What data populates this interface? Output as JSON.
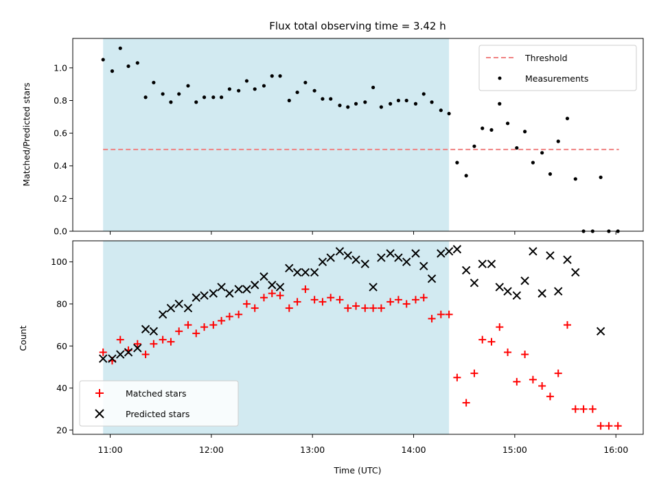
{
  "chart_data": [
    {
      "type": "scatter",
      "title": "Flux total observing time = 3.42 h",
      "ylabel": "Matched/Predicted stars",
      "ylim": [
        0,
        1.18
      ],
      "xlim": [
        10.63,
        16.27
      ],
      "yticks": [
        0.0,
        0.2,
        0.4,
        0.6,
        0.8,
        1.0
      ],
      "ytick_labels": [
        "0.0",
        "0.2",
        "0.4",
        "0.6",
        "0.8",
        "1.0"
      ],
      "observing_window": [
        10.93,
        14.35
      ],
      "threshold": {
        "name": "Threshold",
        "value": 0.5,
        "x_range": [
          10.93,
          16.03
        ],
        "color": "#f08080"
      },
      "legend": {
        "position": "top-right",
        "entries": [
          "Threshold",
          "Measurements"
        ]
      },
      "series": [
        {
          "name": "Measurements",
          "color": "#000000",
          "points": [
            [
              10.93,
              1.05
            ],
            [
              11.02,
              0.98
            ],
            [
              11.1,
              1.12
            ],
            [
              11.18,
              1.01
            ],
            [
              11.27,
              1.03
            ],
            [
              11.35,
              0.82
            ],
            [
              11.43,
              0.91
            ],
            [
              11.52,
              0.84
            ],
            [
              11.6,
              0.79
            ],
            [
              11.68,
              0.84
            ],
            [
              11.77,
              0.89
            ],
            [
              11.85,
              0.79
            ],
            [
              11.93,
              0.82
            ],
            [
              12.02,
              0.82
            ],
            [
              12.1,
              0.82
            ],
            [
              12.18,
              0.87
            ],
            [
              12.27,
              0.86
            ],
            [
              12.35,
              0.92
            ],
            [
              12.43,
              0.87
            ],
            [
              12.52,
              0.89
            ],
            [
              12.6,
              0.95
            ],
            [
              12.68,
              0.95
            ],
            [
              12.77,
              0.8
            ],
            [
              12.85,
              0.85
            ],
            [
              12.93,
              0.91
            ],
            [
              13.02,
              0.86
            ],
            [
              13.1,
              0.81
            ],
            [
              13.18,
              0.81
            ],
            [
              13.27,
              0.77
            ],
            [
              13.35,
              0.76
            ],
            [
              13.43,
              0.78
            ],
            [
              13.52,
              0.79
            ],
            [
              13.6,
              0.88
            ],
            [
              13.68,
              0.76
            ],
            [
              13.77,
              0.78
            ],
            [
              13.85,
              0.8
            ],
            [
              13.93,
              0.8
            ],
            [
              14.02,
              0.78
            ],
            [
              14.1,
              0.84
            ],
            [
              14.18,
              0.79
            ],
            [
              14.27,
              0.74
            ],
            [
              14.35,
              0.72
            ],
            [
              14.43,
              0.42
            ],
            [
              14.52,
              0.34
            ],
            [
              14.6,
              0.52
            ],
            [
              14.68,
              0.63
            ],
            [
              14.77,
              0.62
            ],
            [
              14.85,
              0.78
            ],
            [
              14.93,
              0.66
            ],
            [
              15.02,
              0.51
            ],
            [
              15.1,
              0.61
            ],
            [
              15.18,
              0.42
            ],
            [
              15.27,
              0.48
            ],
            [
              15.35,
              0.35
            ],
            [
              15.43,
              0.55
            ],
            [
              15.52,
              0.69
            ],
            [
              15.6,
              0.32
            ],
            [
              15.68,
              0.0
            ],
            [
              15.77,
              0.0
            ],
            [
              15.85,
              0.33
            ],
            [
              15.93,
              0.0
            ],
            [
              16.02,
              0.0
            ]
          ]
        }
      ]
    },
    {
      "type": "scatter",
      "xlabel": "Time (UTC)",
      "ylabel": "Count",
      "ylim": [
        18,
        110
      ],
      "xlim": [
        10.63,
        16.27
      ],
      "yticks": [
        20,
        40,
        60,
        80,
        100
      ],
      "ytick_labels": [
        "20",
        "40",
        "60",
        "80",
        "100"
      ],
      "xticks": [
        11,
        12,
        13,
        14,
        15,
        16
      ],
      "xtick_labels": [
        "11:00",
        "12:00",
        "13:00",
        "14:00",
        "15:00",
        "16:00"
      ],
      "observing_window": [
        10.93,
        14.35
      ],
      "legend": {
        "position": "bottom-left",
        "entries": [
          "Matched stars",
          "Predicted stars"
        ]
      },
      "series": [
        {
          "name": "Matched stars",
          "marker": "plus",
          "color": "#ff0000",
          "points": [
            [
              10.93,
              57
            ],
            [
              11.02,
              53
            ],
            [
              11.1,
              63
            ],
            [
              11.18,
              58
            ],
            [
              11.27,
              61
            ],
            [
              11.35,
              56
            ],
            [
              11.43,
              61
            ],
            [
              11.52,
              63
            ],
            [
              11.6,
              62
            ],
            [
              11.68,
              67
            ],
            [
              11.77,
              70
            ],
            [
              11.85,
              66
            ],
            [
              11.93,
              69
            ],
            [
              12.02,
              70
            ],
            [
              12.1,
              72
            ],
            [
              12.18,
              74
            ],
            [
              12.27,
              75
            ],
            [
              12.35,
              80
            ],
            [
              12.43,
              78
            ],
            [
              12.52,
              83
            ],
            [
              12.6,
              85
            ],
            [
              12.68,
              84
            ],
            [
              12.77,
              78
            ],
            [
              12.85,
              81
            ],
            [
              12.93,
              87
            ],
            [
              13.02,
              82
            ],
            [
              13.1,
              81
            ],
            [
              13.18,
              83
            ],
            [
              13.27,
              82
            ],
            [
              13.35,
              78
            ],
            [
              13.43,
              79
            ],
            [
              13.52,
              78
            ],
            [
              13.6,
              78
            ],
            [
              13.68,
              78
            ],
            [
              13.77,
              81
            ],
            [
              13.85,
              82
            ],
            [
              13.93,
              80
            ],
            [
              14.02,
              82
            ],
            [
              14.1,
              83
            ],
            [
              14.18,
              73
            ],
            [
              14.27,
              75
            ],
            [
              14.35,
              75
            ],
            [
              14.43,
              45
            ],
            [
              14.52,
              33
            ],
            [
              14.6,
              47
            ],
            [
              14.68,
              63
            ],
            [
              14.77,
              62
            ],
            [
              14.85,
              69
            ],
            [
              14.93,
              57
            ],
            [
              15.02,
              43
            ],
            [
              15.1,
              56
            ],
            [
              15.18,
              44
            ],
            [
              15.27,
              41
            ],
            [
              15.35,
              36
            ],
            [
              15.43,
              47
            ],
            [
              15.52,
              70
            ],
            [
              15.6,
              30
            ],
            [
              15.68,
              30
            ],
            [
              15.77,
              30
            ],
            [
              15.85,
              22
            ],
            [
              15.93,
              22
            ],
            [
              16.02,
              22
            ]
          ]
        },
        {
          "name": "Predicted stars",
          "marker": "x",
          "color": "#000000",
          "points": [
            [
              10.93,
              54
            ],
            [
              11.02,
              54
            ],
            [
              11.1,
              56
            ],
            [
              11.18,
              57
            ],
            [
              11.27,
              59
            ],
            [
              11.35,
              68
            ],
            [
              11.43,
              67
            ],
            [
              11.52,
              75
            ],
            [
              11.6,
              78
            ],
            [
              11.68,
              80
            ],
            [
              11.77,
              78
            ],
            [
              11.85,
              83
            ],
            [
              11.93,
              84
            ],
            [
              12.02,
              85
            ],
            [
              12.1,
              88
            ],
            [
              12.18,
              85
            ],
            [
              12.27,
              87
            ],
            [
              12.35,
              87
            ],
            [
              12.43,
              89
            ],
            [
              12.52,
              93
            ],
            [
              12.6,
              89
            ],
            [
              12.68,
              88
            ],
            [
              12.77,
              97
            ],
            [
              12.85,
              95
            ],
            [
              12.93,
              95
            ],
            [
              13.02,
              95
            ],
            [
              13.1,
              100
            ],
            [
              13.18,
              102
            ],
            [
              13.27,
              105
            ],
            [
              13.35,
              103
            ],
            [
              13.43,
              101
            ],
            [
              13.52,
              99
            ],
            [
              13.6,
              88
            ],
            [
              13.68,
              102
            ],
            [
              13.77,
              104
            ],
            [
              13.85,
              102
            ],
            [
              13.93,
              100
            ],
            [
              14.02,
              104
            ],
            [
              14.1,
              98
            ],
            [
              14.18,
              92
            ],
            [
              14.27,
              104
            ],
            [
              14.35,
              105
            ],
            [
              14.43,
              106
            ],
            [
              14.52,
              96
            ],
            [
              14.6,
              90
            ],
            [
              14.68,
              99
            ],
            [
              14.77,
              99
            ],
            [
              14.85,
              88
            ],
            [
              14.93,
              86
            ],
            [
              15.02,
              84
            ],
            [
              15.1,
              91
            ],
            [
              15.18,
              105
            ],
            [
              15.27,
              85
            ],
            [
              15.35,
              103
            ],
            [
              15.43,
              86
            ],
            [
              15.52,
              101
            ],
            [
              15.6,
              95
            ],
            [
              15.85,
              67
            ]
          ]
        }
      ]
    }
  ]
}
